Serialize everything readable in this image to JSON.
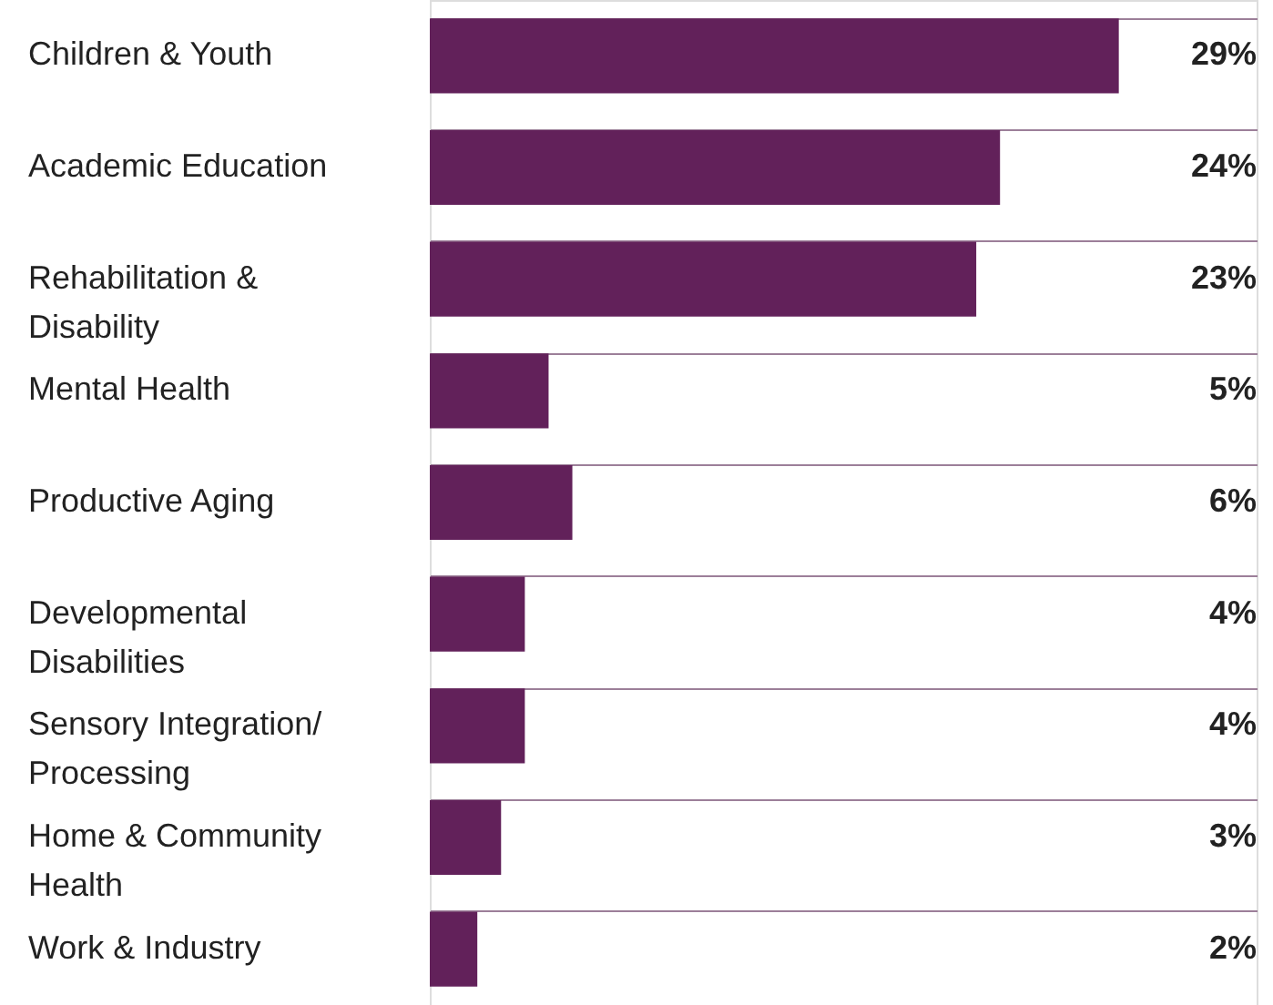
{
  "chart_data": {
    "type": "bar",
    "orientation": "horizontal",
    "categories": [
      "Children & Youth",
      "Academic Education",
      "Rehabilitation & Disability",
      "Mental Health",
      "Productive Aging",
      "Developmental Disabilities",
      "Sensory Integration/ Processing",
      "Home & Community Health",
      "Work & Industry"
    ],
    "values": [
      29,
      24,
      23,
      5,
      6,
      4,
      4,
      3,
      2
    ],
    "value_labels": [
      "29%",
      "24%",
      "23%",
      "5%",
      "6%",
      "4%",
      "4%",
      "3%",
      "2%"
    ],
    "color": "#62215a",
    "grid": "y"
  }
}
